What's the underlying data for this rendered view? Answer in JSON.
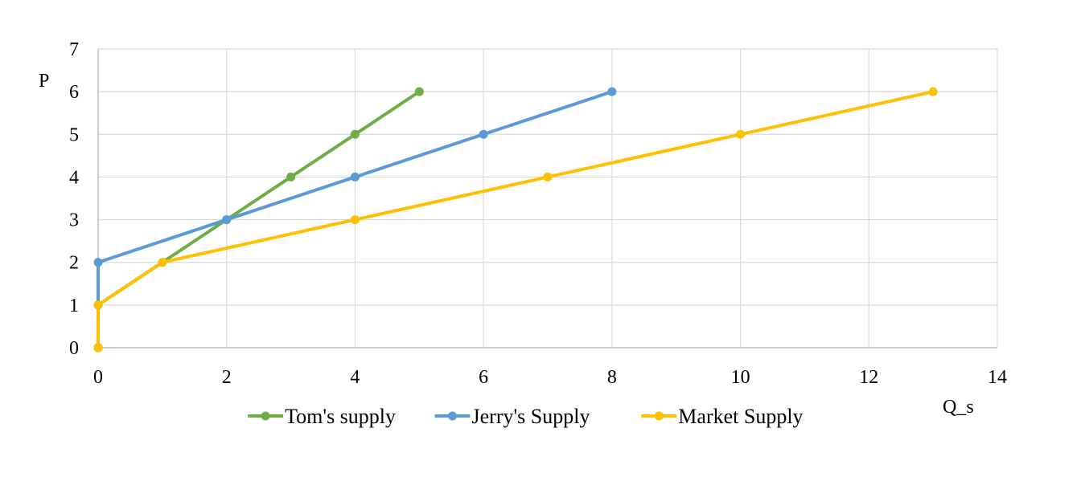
{
  "chart_data": {
    "type": "line",
    "title": "",
    "xlabel": "Q_s",
    "ylabel": "P",
    "xlim": [
      0,
      14
    ],
    "ylim": [
      0,
      7
    ],
    "xticks": [
      0,
      2,
      4,
      6,
      8,
      10,
      12,
      14
    ],
    "yticks": [
      0,
      1,
      2,
      3,
      4,
      5,
      6,
      7
    ],
    "grid": true,
    "legend_position": "bottom",
    "series": [
      {
        "name": "Tom's supply",
        "color": "#70AD47",
        "points": [
          [
            0,
            0
          ],
          [
            0,
            1
          ],
          [
            1,
            2
          ],
          [
            2,
            3
          ],
          [
            3,
            4
          ],
          [
            4,
            5
          ],
          [
            5,
            6
          ]
        ]
      },
      {
        "name": "Jerry's Supply",
        "color": "#5B9BD5",
        "points": [
          [
            0,
            0
          ],
          [
            0,
            1
          ],
          [
            0,
            2
          ],
          [
            2,
            3
          ],
          [
            4,
            4
          ],
          [
            6,
            5
          ],
          [
            8,
            6
          ]
        ]
      },
      {
        "name": "Market Supply",
        "color": "#FFC000",
        "points": [
          [
            0,
            0
          ],
          [
            0,
            1
          ],
          [
            1,
            2
          ],
          [
            4,
            3
          ],
          [
            7,
            4
          ],
          [
            10,
            5
          ],
          [
            13,
            6
          ]
        ]
      }
    ]
  }
}
